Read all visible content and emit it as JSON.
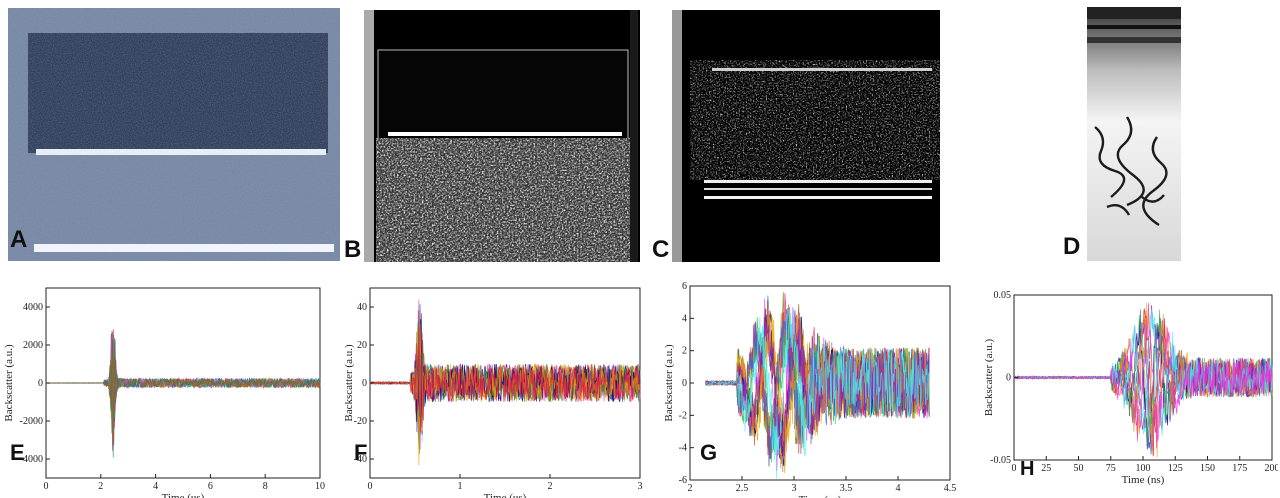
{
  "panels": {
    "A": {
      "label": "A"
    },
    "B": {
      "label": "B"
    },
    "C": {
      "label": "C"
    },
    "D": {
      "label": "D"
    }
  },
  "colors": {
    "traces": [
      "#e6194b",
      "#3cb44b",
      "#4363d8",
      "#f58231",
      "#911eb4",
      "#46f0f0",
      "#f032e6",
      "#808000",
      "#008080",
      "#9a6324",
      "#000075",
      "#e6a800"
    ],
    "frame": "#222222"
  },
  "chart_data": [
    {
      "id": "E",
      "panel_label": "E",
      "type": "line",
      "xlabel": "Time (us)",
      "ylabel": "Backscatter (a.u.)",
      "xlim": [
        0,
        10
      ],
      "ylim": [
        -5000,
        5000
      ],
      "xticks": [
        "0",
        "2",
        "4",
        "6",
        "8",
        "10"
      ],
      "xtick_values": [
        0,
        2,
        4,
        6,
        8,
        10
      ],
      "yticks": [
        "-4000",
        "-2000",
        "0",
        "2000",
        "4000"
      ],
      "ytick_values": [
        -4000,
        -2000,
        0,
        2000,
        4000
      ],
      "grid": false,
      "signal": {
        "onset": 2.1,
        "pulse_center": 2.45,
        "pulse_width": 0.1,
        "pulse_amp": 4200,
        "noise_amp": 250,
        "series_count": 10
      }
    },
    {
      "id": "F",
      "panel_label": "F",
      "type": "line",
      "xlabel": "Time (us)",
      "ylabel": "Backscatter (a.u.)",
      "xlim": [
        0,
        3
      ],
      "ylim": [
        -50,
        50
      ],
      "xticks": [
        "0",
        "1",
        "2",
        "3"
      ],
      "xtick_values": [
        0,
        1,
        2,
        3
      ],
      "yticks": [
        "-40",
        "-20",
        "0",
        "20",
        "40"
      ],
      "ytick_values": [
        -40,
        -20,
        0,
        20,
        40
      ],
      "grid": false,
      "signal": {
        "onset": 0.45,
        "pulse_center": 0.55,
        "pulse_width": 0.04,
        "pulse_amp": 45,
        "noise_amp": 10,
        "series_count": 10
      }
    },
    {
      "id": "G",
      "panel_label": "G",
      "type": "line",
      "xlabel": "Time (us)",
      "ylabel": "Backscatter (a.u.)",
      "xlim": [
        2,
        4.5
      ],
      "ylim": [
        -6,
        6
      ],
      "xticks": [
        "2",
        "2.5",
        "3",
        "3.5",
        "4",
        "4.5"
      ],
      "xtick_values": [
        2,
        2.5,
        3,
        3.5,
        4,
        4.5
      ],
      "yticks": [
        "-6",
        "-4",
        "-2",
        "0",
        "2",
        "4",
        "6"
      ],
      "ytick_values": [
        -6,
        -4,
        -2,
        0,
        2,
        4,
        6
      ],
      "grid": false,
      "signal": {
        "start": 2.15,
        "end": 4.3,
        "onset": 2.45,
        "pulse_center": 2.85,
        "pulse_width": 0.35,
        "pulse_amp": 4.5,
        "noise_amp": 2.2,
        "series_count": 12
      }
    },
    {
      "id": "H",
      "panel_label": "H",
      "type": "line",
      "xlabel": "Time (ns)",
      "ylabel": "Backscatter (a.u.)",
      "xlim": [
        0,
        200
      ],
      "ylim": [
        -0.05,
        0.05
      ],
      "xticks": [
        "0",
        "25",
        "50",
        "75",
        "100",
        "125",
        "150",
        "175",
        "200"
      ],
      "xtick_values": [
        0,
        25,
        50,
        75,
        100,
        125,
        150,
        175,
        200
      ],
      "yticks": [
        "-0.05",
        "0",
        "0.05"
      ],
      "ytick_values": [
        -0.05,
        0,
        0.05
      ],
      "grid": false,
      "signal": {
        "onset": 75,
        "pulse_center": 105,
        "pulse_width": 18,
        "pulse_amp": 0.045,
        "noise_amp": 0.012,
        "series_count": 10
      }
    }
  ]
}
